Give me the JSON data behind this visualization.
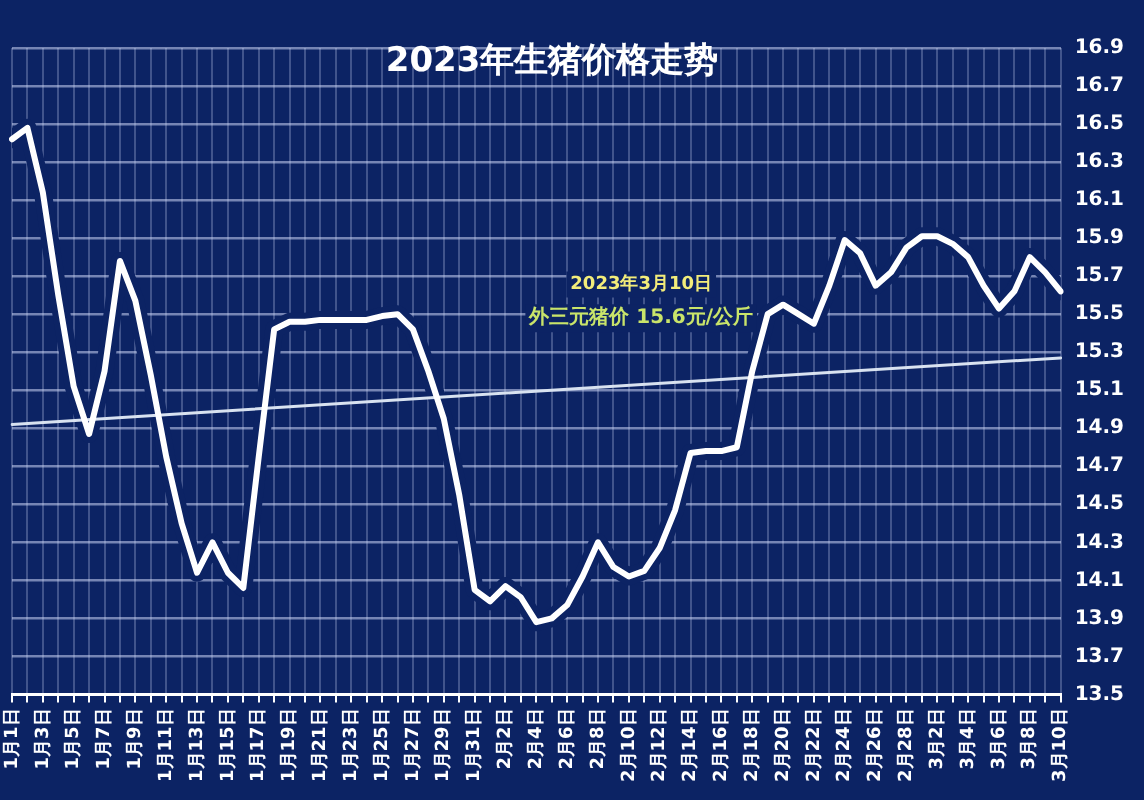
{
  "chart_data": {
    "type": "line",
    "title": "2023年生猪价格走势",
    "categories": [
      "1月1日",
      null,
      "1月3日",
      null,
      "1月5日",
      null,
      "1月7日",
      null,
      "1月9日",
      null,
      "1月11日",
      null,
      "1月13日",
      null,
      "1月15日",
      null,
      "1月17日",
      null,
      "1月19日",
      null,
      "1月21日",
      null,
      "1月23日",
      null,
      "1月25日",
      null,
      "1月27日",
      null,
      "1月29日",
      null,
      "1月31日",
      null,
      "2月2日",
      null,
      "2月4日",
      null,
      "2月6日",
      null,
      "2月8日",
      null,
      "2月10日",
      null,
      "2月12日",
      null,
      "2月14日",
      null,
      "2月16日",
      null,
      "2月18日",
      null,
      "2月20日",
      null,
      "2月22日",
      null,
      "2月24日",
      null,
      "2月26日",
      null,
      "2月28日",
      null,
      "3月2日",
      null,
      "3月4日",
      null,
      "3月6日",
      null,
      "3月8日",
      null,
      "3月10日"
    ],
    "series": [
      {
        "color": "#ffffff",
        "values": [
          16.42,
          16.48,
          16.14,
          15.6,
          15.12,
          14.87,
          15.2,
          15.78,
          15.57,
          15.18,
          14.75,
          14.4,
          14.14,
          14.3,
          14.14,
          14.06,
          14.75,
          15.42,
          15.46,
          15.46,
          15.47,
          15.47,
          15.47,
          15.47,
          15.49,
          15.5,
          15.42,
          15.2,
          14.95,
          14.55,
          14.05,
          13.99,
          14.07,
          14.01,
          13.88,
          13.9,
          13.97,
          14.12,
          14.3,
          14.17,
          14.12,
          14.15,
          14.27,
          14.47,
          14.77,
          14.78,
          14.78,
          14.8,
          15.2,
          15.5,
          15.55,
          15.5,
          15.45,
          15.65,
          15.89,
          15.82,
          15.65,
          15.72,
          15.85,
          15.91,
          15.91,
          15.87,
          15.8,
          15.65,
          15.53,
          15.62,
          15.8,
          15.72,
          15.62
        ]
      },
      {
        "color": "#d8e2f0",
        "x": [
          "1月1日",
          "3月10日"
        ],
        "values": [
          14.92,
          15.27
        ]
      }
    ],
    "ylim": [
      13.5,
      16.9
    ],
    "yticks": [
      13.5,
      13.7,
      13.9,
      14.1,
      14.3,
      14.5,
      14.7,
      14.9,
      15.1,
      15.3,
      15.5,
      15.7,
      15.9,
      16.1,
      16.3,
      16.5,
      16.7,
      16.9
    ],
    "grid": true,
    "marker": "none",
    "line_style": "solid",
    "annotations": [
      "2023年3月10日",
      "外三元猪价 15.6元/公斤"
    ]
  }
}
